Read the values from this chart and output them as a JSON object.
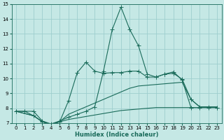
{
  "xlabel": "Humidex (Indice chaleur)",
  "xlim": [
    -0.5,
    23.5
  ],
  "ylim": [
    7,
    15
  ],
  "yticks": [
    7,
    8,
    9,
    10,
    11,
    12,
    13,
    14,
    15
  ],
  "xticks": [
    0,
    1,
    2,
    3,
    4,
    5,
    6,
    7,
    8,
    9,
    10,
    11,
    12,
    13,
    14,
    15,
    16,
    17,
    18,
    19,
    20,
    21,
    22,
    23
  ],
  "bg_color": "#c5e8e5",
  "grid_color": "#9ecece",
  "line_color": "#1a6b5a",
  "line1_x": [
    0,
    1,
    2,
    3,
    4,
    5,
    6,
    7,
    8,
    9,
    10,
    11,
    12,
    13,
    14,
    15,
    16,
    17,
    18,
    19,
    20,
    21,
    22,
    23
  ],
  "line1_y": [
    7.8,
    7.8,
    7.8,
    7.15,
    6.95,
    7.15,
    7.4,
    7.6,
    7.8,
    8.1,
    10.5,
    13.3,
    14.8,
    13.3,
    12.2,
    10.3,
    10.1,
    10.3,
    10.45,
    9.9,
    8.05,
    8.05,
    8.05,
    8.05
  ],
  "line2_x": [
    0,
    1,
    2,
    3,
    4,
    5,
    6,
    7,
    8,
    9,
    10,
    11,
    12,
    13,
    14,
    15,
    16,
    17,
    18,
    19,
    20,
    21,
    22,
    23
  ],
  "line2_y": [
    7.8,
    7.8,
    7.5,
    7.1,
    6.9,
    7.1,
    8.5,
    10.4,
    11.1,
    10.5,
    10.35,
    10.4,
    10.4,
    10.5,
    10.5,
    10.1,
    10.1,
    10.3,
    10.35,
    9.95,
    8.6,
    8.1,
    8.1,
    8.05
  ],
  "line3_x": [
    0,
    2,
    3,
    4,
    5,
    6,
    7,
    8,
    9,
    10,
    11,
    12,
    13,
    14,
    15,
    16,
    17,
    18,
    19,
    20,
    21,
    22,
    23
  ],
  "line3_y": [
    7.8,
    7.5,
    7.1,
    6.9,
    7.1,
    7.6,
    7.85,
    8.1,
    8.35,
    8.6,
    8.85,
    9.1,
    9.35,
    9.5,
    9.55,
    9.6,
    9.65,
    9.7,
    9.75,
    8.6,
    8.1,
    8.1,
    8.1
  ],
  "line4_x": [
    0,
    2,
    3,
    4,
    5,
    6,
    7,
    8,
    9,
    10,
    11,
    12,
    13,
    14,
    15,
    16,
    17,
    18,
    19,
    20,
    21,
    22,
    23
  ],
  "line4_y": [
    7.8,
    7.5,
    7.1,
    6.9,
    7.1,
    7.25,
    7.35,
    7.45,
    7.55,
    7.65,
    7.75,
    7.85,
    7.9,
    7.95,
    8.0,
    8.05,
    8.05,
    8.05,
    8.05,
    8.05,
    8.05,
    8.05,
    8.05
  ]
}
